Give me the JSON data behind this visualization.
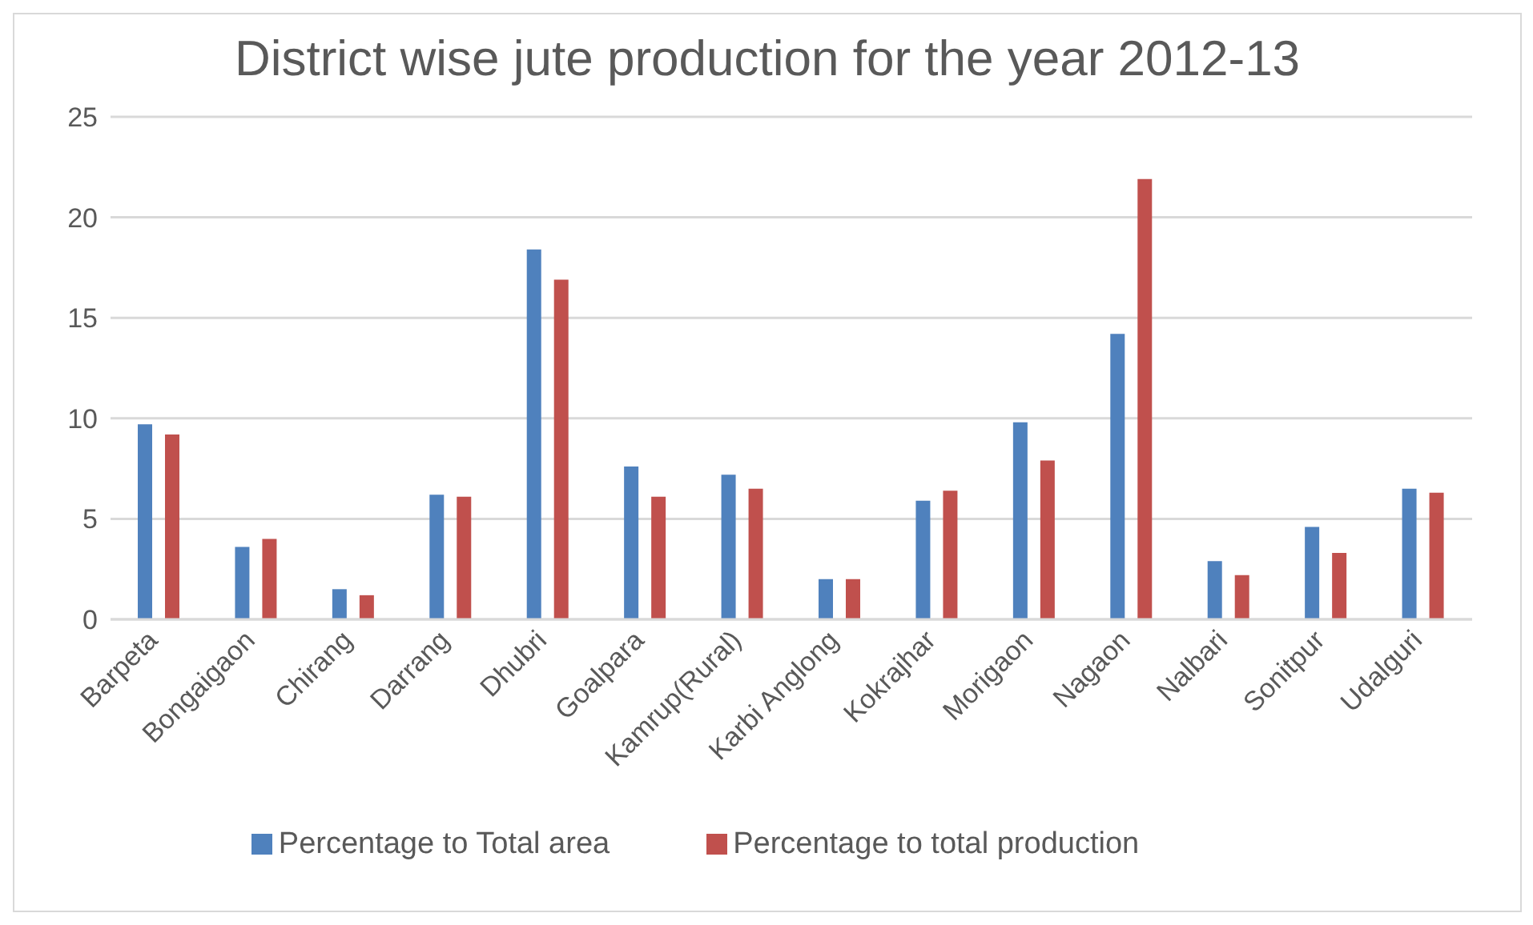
{
  "chart_data": {
    "type": "bar",
    "title": "District wise jute production for the year 2012-13",
    "categories": [
      "Barpeta",
      "Bongaigaon",
      "Chirang",
      "Darrang",
      "Dhubri",
      "Goalpara",
      "Kamrup(Rural)",
      "Karbi Anglong",
      "Kokrajhar",
      "Morigaon",
      "Nagaon",
      "Nalbari",
      "Sonitpur",
      "Udalguri"
    ],
    "series": [
      {
        "name": "Percentage to Total area",
        "color": "#4f81bd",
        "values": [
          9.7,
          3.6,
          1.5,
          6.2,
          18.4,
          7.6,
          7.2,
          2.0,
          5.9,
          9.8,
          14.2,
          2.9,
          4.6,
          6.5
        ]
      },
      {
        "name": "Percentage to total production",
        "color": "#c0504d",
        "values": [
          9.2,
          4.0,
          1.2,
          6.1,
          16.9,
          6.1,
          6.5,
          2.0,
          6.4,
          7.9,
          21.9,
          2.2,
          3.3,
          6.3
        ]
      }
    ],
    "ylim": [
      0,
      25
    ],
    "yticks": [
      0,
      5,
      10,
      15,
      20,
      25
    ],
    "grid": "y",
    "legend": "bottom"
  }
}
